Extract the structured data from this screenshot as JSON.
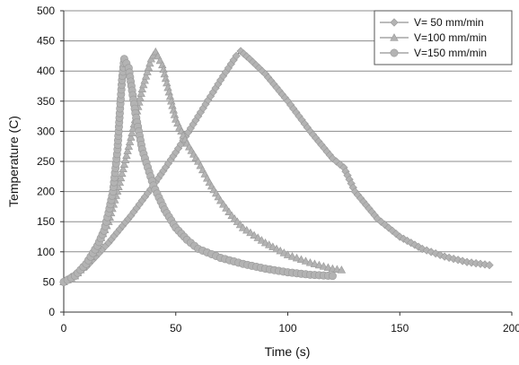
{
  "chart_data": {
    "type": "scatter",
    "xlabel": "Time (s)",
    "ylabel": "Temperature (C)",
    "xlim": [
      0,
      200
    ],
    "ylim": [
      0,
      500
    ],
    "x_ticks": [
      "0",
      "50",
      "100",
      "150",
      "200"
    ],
    "y_ticks": [
      "0",
      "50",
      "100",
      "150",
      "200",
      "250",
      "300",
      "350",
      "400",
      "450",
      "500"
    ],
    "grid": "horizontal",
    "legend_position": "top-right",
    "series": [
      {
        "name": "V= 50 mm/min",
        "marker": "diamond",
        "color": "#b3b3b3",
        "points": [
          [
            0,
            50
          ],
          [
            10,
            75
          ],
          [
            20,
            115
          ],
          [
            30,
            160
          ],
          [
            40,
            210
          ],
          [
            50,
            265
          ],
          [
            60,
            325
          ],
          [
            70,
            385
          ],
          [
            77,
            425
          ],
          [
            79,
            433
          ],
          [
            83,
            420
          ],
          [
            90,
            395
          ],
          [
            100,
            350
          ],
          [
            110,
            300
          ],
          [
            120,
            255
          ],
          [
            125,
            240
          ],
          [
            130,
            200
          ],
          [
            140,
            155
          ],
          [
            150,
            125
          ],
          [
            160,
            105
          ],
          [
            170,
            92
          ],
          [
            180,
            83
          ],
          [
            190,
            78
          ]
        ]
      },
      {
        "name": "V=100 mm/min",
        "marker": "triangle",
        "color": "#b3b3b3",
        "points": [
          [
            0,
            50
          ],
          [
            5,
            60
          ],
          [
            10,
            80
          ],
          [
            15,
            110
          ],
          [
            20,
            150
          ],
          [
            25,
            215
          ],
          [
            30,
            290
          ],
          [
            35,
            370
          ],
          [
            39,
            420
          ],
          [
            41,
            432
          ],
          [
            44,
            410
          ],
          [
            50,
            320
          ],
          [
            55,
            280
          ],
          [
            60,
            250
          ],
          [
            65,
            215
          ],
          [
            70,
            185
          ],
          [
            75,
            160
          ],
          [
            80,
            140
          ],
          [
            90,
            115
          ],
          [
            100,
            95
          ],
          [
            110,
            82
          ],
          [
            120,
            72
          ],
          [
            124,
            70
          ]
        ]
      },
      {
        "name": "V=150 mm/min",
        "marker": "circle",
        "color": "#b3b3b3",
        "points": [
          [
            0,
            50
          ],
          [
            5,
            60
          ],
          [
            10,
            80
          ],
          [
            15,
            110
          ],
          [
            18,
            135
          ],
          [
            20,
            165
          ],
          [
            22,
            200
          ],
          [
            24,
            270
          ],
          [
            25,
            330
          ],
          [
            26,
            385
          ],
          [
            27,
            420
          ],
          [
            29,
            405
          ],
          [
            32,
            330
          ],
          [
            35,
            270
          ],
          [
            40,
            210
          ],
          [
            45,
            170
          ],
          [
            50,
            140
          ],
          [
            55,
            120
          ],
          [
            60,
            105
          ],
          [
            70,
            90
          ],
          [
            80,
            80
          ],
          [
            90,
            72
          ],
          [
            100,
            66
          ],
          [
            110,
            62
          ],
          [
            120,
            60
          ]
        ]
      }
    ]
  }
}
